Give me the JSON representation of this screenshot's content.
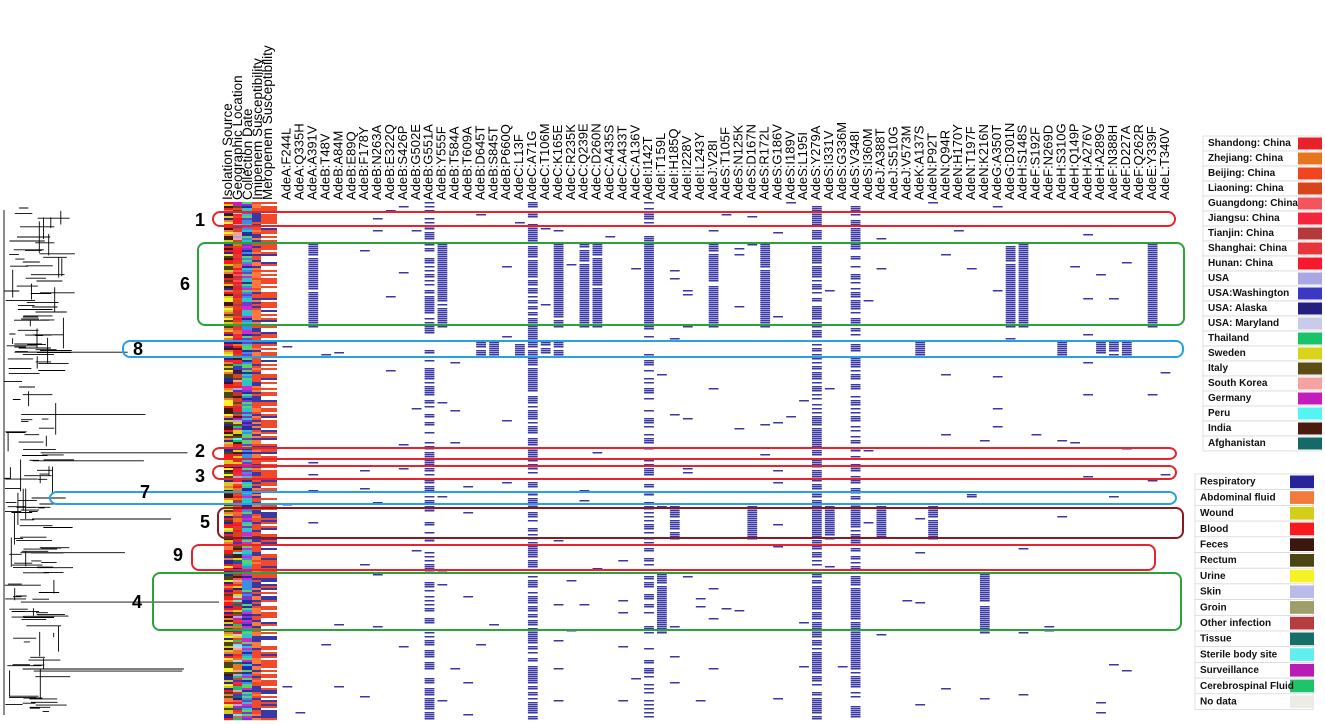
{
  "metadata_columns": [
    "Isolation Source",
    "Geographic Location",
    "Collection Date",
    "Imipenem Susceptibility",
    "Meropenem Susceptibility"
  ],
  "mutation_columns": [
    "AdeA:F244L",
    "AdeA:Q335H",
    "AdeA:A391V",
    "AdeB:T48V",
    "AdeB:A84M",
    "AdeB:E89Q",
    "AdeB:F178Y",
    "AdeB:N263A",
    "AdeB:E322Q",
    "AdeB:S426P",
    "AdeB:G502E",
    "AdeB:G551A",
    "AdeB:Y555F",
    "AdeB:T584A",
    "AdeB:T609A",
    "AdeB:D645T",
    "AdeB:S845T",
    "AdeB:P660Q",
    "AdeC:L13F",
    "AdeC:A71G",
    "AdeC:T106M",
    "AdeC:K165E",
    "AdeC:R235K",
    "AdeC:Q239E",
    "AdeC:D260N",
    "AdeC:A435S",
    "AdeC:A433T",
    "AdeC:A136V",
    "AdeI:I142T",
    "AdeI:T159L",
    "AdeI:H185Q",
    "AdeI:I228V",
    "AdeI:L243Y",
    "AdeJ:V28I",
    "AdeS:T105F",
    "AdeS:N125K",
    "AdeS:D167N",
    "AdeS:R172L",
    "AdeS:G186V",
    "AdeS:I189V",
    "AdeS:L195I",
    "AdeS:Y279A",
    "AdeS:I331V",
    "AdeS:G336M",
    "AdeS:V348I",
    "AdeS:I360M",
    "AdeJ:A388T",
    "AdeJ:S510G",
    "AdeJ:V573M",
    "AdeK:A137S",
    "AdeN:P92T",
    "AdeN:Q94R",
    "AdeN:H170Y",
    "AdeN:T197F",
    "AdeN:K216N",
    "AdeG:A350T",
    "AdeG:D301N",
    "AdeH:S148S",
    "AdeF:S192F",
    "AdeF:N269D",
    "AdeH:S310G",
    "AdeH:Q149P",
    "AdeH:A276V",
    "AdeH:A289G",
    "AdeF:N388H",
    "AdeF:D227A",
    "AdeF:Q262R",
    "AdeE:Y339F",
    "AdeL:T340V"
  ],
  "box_labels": [
    "1",
    "2",
    "3",
    "4",
    "5",
    "6",
    "7",
    "8",
    "9"
  ],
  "legend_geographic": [
    {
      "label": "Shandong: China",
      "color": "#e8222a"
    },
    {
      "label": "Zhejiang: China",
      "color": "#e6761e"
    },
    {
      "label": "Beijing: China",
      "color": "#f2441d"
    },
    {
      "label": "Liaoning: China",
      "color": "#d8451a"
    },
    {
      "label": "Guangdong: China",
      "color": "#f4555c"
    },
    {
      "label": "Jiangsu: China",
      "color": "#f7243d"
    },
    {
      "label": "Tianjin: China",
      "color": "#b43a3a"
    },
    {
      "label": "Shanghai: China",
      "color": "#e8353a"
    },
    {
      "label": "Hunan: China",
      "color": "#f7192b"
    },
    {
      "label": "USA",
      "color": "#a9a7e4"
    },
    {
      "label": "USA:Washington",
      "color": "#3a38c4"
    },
    {
      "label": "USA: Alaska",
      "color": "#232080"
    },
    {
      "label": "USA: Maryland",
      "color": "#c9cbe9"
    },
    {
      "label": "Thailand",
      "color": "#17c46a"
    },
    {
      "label": "Sweden",
      "color": "#d9d31a"
    },
    {
      "label": "Italy",
      "color": "#5a4e14"
    },
    {
      "label": "South Korea",
      "color": "#f5a2a2"
    },
    {
      "label": "Germany",
      "color": "#c51cbd"
    },
    {
      "label": "Peru",
      "color": "#54f4f4"
    },
    {
      "label": "India",
      "color": "#4a1c10"
    },
    {
      "label": "Afghanistan",
      "color": "#136a66"
    }
  ],
  "legend_source": [
    {
      "label": "Respiratory",
      "color": "#262497"
    },
    {
      "label": "Abdominal fluid",
      "color": "#f27a3a"
    },
    {
      "label": "Wound",
      "color": "#d4cd1a"
    },
    {
      "label": "Blood",
      "color": "#f7191c"
    },
    {
      "label": "Feces",
      "color": "#3c1710"
    },
    {
      "label": "Rectum",
      "color": "#4b4413"
    },
    {
      "label": "Urine",
      "color": "#f7f226"
    },
    {
      "label": "Skin",
      "color": "#b9bceb"
    },
    {
      "label": "Groin",
      "color": "#9e9e6a"
    },
    {
      "label": "Other infection",
      "color": "#b63d3f"
    },
    {
      "label": "Tissue",
      "color": "#156e68"
    },
    {
      "label": "Sterile body site",
      "color": "#62eeee"
    },
    {
      "label": "Surveillance",
      "color": "#b81cb4"
    },
    {
      "label": "Cerebrospinal Fluid",
      "color": "#1fc46a"
    },
    {
      "label": "No data",
      "color": "#ecece6"
    }
  ],
  "colors": {
    "mutation_present": "#3a38a4",
    "box_red": "#e8232b",
    "box_green": "#2ba33a",
    "box_blue": "#27a0e4",
    "box_darkred": "#8b1a1f",
    "tree": "#000000"
  }
}
